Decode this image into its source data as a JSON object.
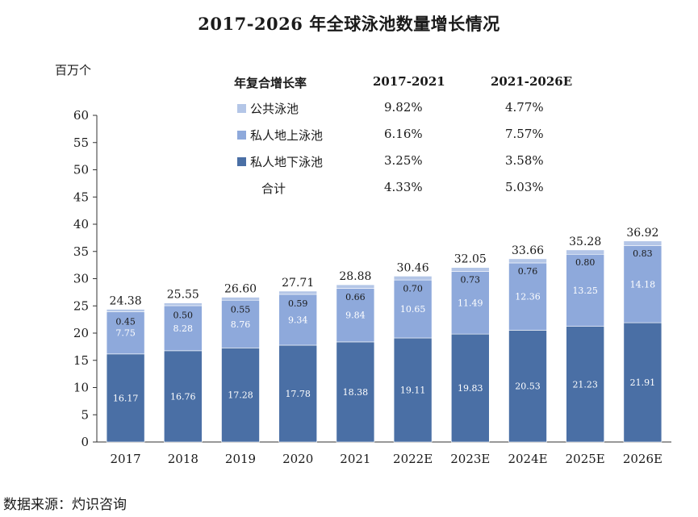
{
  "title": "2017-2026 年全球泳池数量增长情况",
  "unit_label": "百万个",
  "source": "数据来源：灼识咨询",
  "legend_table": {
    "header": [
      "年复合增长率",
      "2017-2021",
      "2021-2026E"
    ],
    "rows": [
      {
        "name": "公共泳池",
        "cagr_2017_2021": "9.82%",
        "cagr_2021_2026": "4.77%",
        "color": "#b4c6e7"
      },
      {
        "name": "私人地上泳池",
        "cagr_2017_2021": "6.16%",
        "cagr_2021_2026": "7.57%",
        "color": "#8ea9db"
      },
      {
        "name": "私人地下泳池",
        "cagr_2017_2021": "3.25%",
        "cagr_2021_2026": "3.58%",
        "color": "#4a6fa5"
      },
      {
        "name": "合计",
        "cagr_2017_2021": "4.33%",
        "cagr_2021_2026": "5.03%",
        "color": ""
      }
    ]
  },
  "chart_data": {
    "type": "bar",
    "stacked": true,
    "categories": [
      "2017",
      "2018",
      "2019",
      "2020",
      "2021",
      "2022E",
      "2023E",
      "2024E",
      "2025E",
      "2026E"
    ],
    "series": [
      {
        "name": "私人地下泳池",
        "color": "#4a6fa5",
        "label_color": "#ffffff",
        "values": [
          16.17,
          16.76,
          17.28,
          17.78,
          18.38,
          19.11,
          19.83,
          20.53,
          21.23,
          21.91
        ],
        "labels": [
          "16.17",
          "16.76",
          "17.28",
          "17.78",
          "18.38",
          "19.11",
          "19.83",
          "20.53",
          "21.23",
          "21.91"
        ]
      },
      {
        "name": "私人地上泳池",
        "color": "#8ea9db",
        "label_color": "#ffffff",
        "values": [
          7.75,
          8.28,
          8.76,
          9.34,
          9.84,
          10.65,
          11.49,
          12.36,
          13.25,
          14.18
        ],
        "labels": [
          "7.75",
          "8.28",
          "8.76",
          "9.34",
          "9.84",
          "10.65",
          "11.49",
          "12.36",
          "13.25",
          "14.18"
        ]
      },
      {
        "name": "公共泳池",
        "color": "#b4c6e7",
        "label_color": "#1a1a1a",
        "values": [
          0.45,
          0.5,
          0.55,
          0.59,
          0.66,
          0.7,
          0.73,
          0.76,
          0.8,
          0.83
        ],
        "labels": [
          "0.45",
          "0.50",
          "0.55",
          "0.59",
          "0.66",
          "0.70",
          "0.73",
          "0.76",
          "0.80",
          "0.83"
        ]
      }
    ],
    "totals": [
      24.38,
      25.55,
      26.6,
      27.71,
      28.88,
      30.46,
      32.05,
      33.66,
      35.28,
      36.92
    ],
    "total_labels": [
      "24.38",
      "25.55",
      "26.60",
      "27.71",
      "28.88",
      "30.46",
      "32.05",
      "33.66",
      "35.28",
      "36.92"
    ],
    "ylim": [
      0,
      60
    ],
    "yticks": [
      "0",
      "5",
      "10",
      "15",
      "20",
      "25",
      "30",
      "35",
      "40",
      "45",
      "50",
      "55",
      "60"
    ],
    "ytick_values": [
      0,
      5,
      10,
      15,
      20,
      25,
      30,
      35,
      40,
      45,
      50,
      55,
      60
    ],
    "grid": false,
    "legend": "top-center table"
  }
}
